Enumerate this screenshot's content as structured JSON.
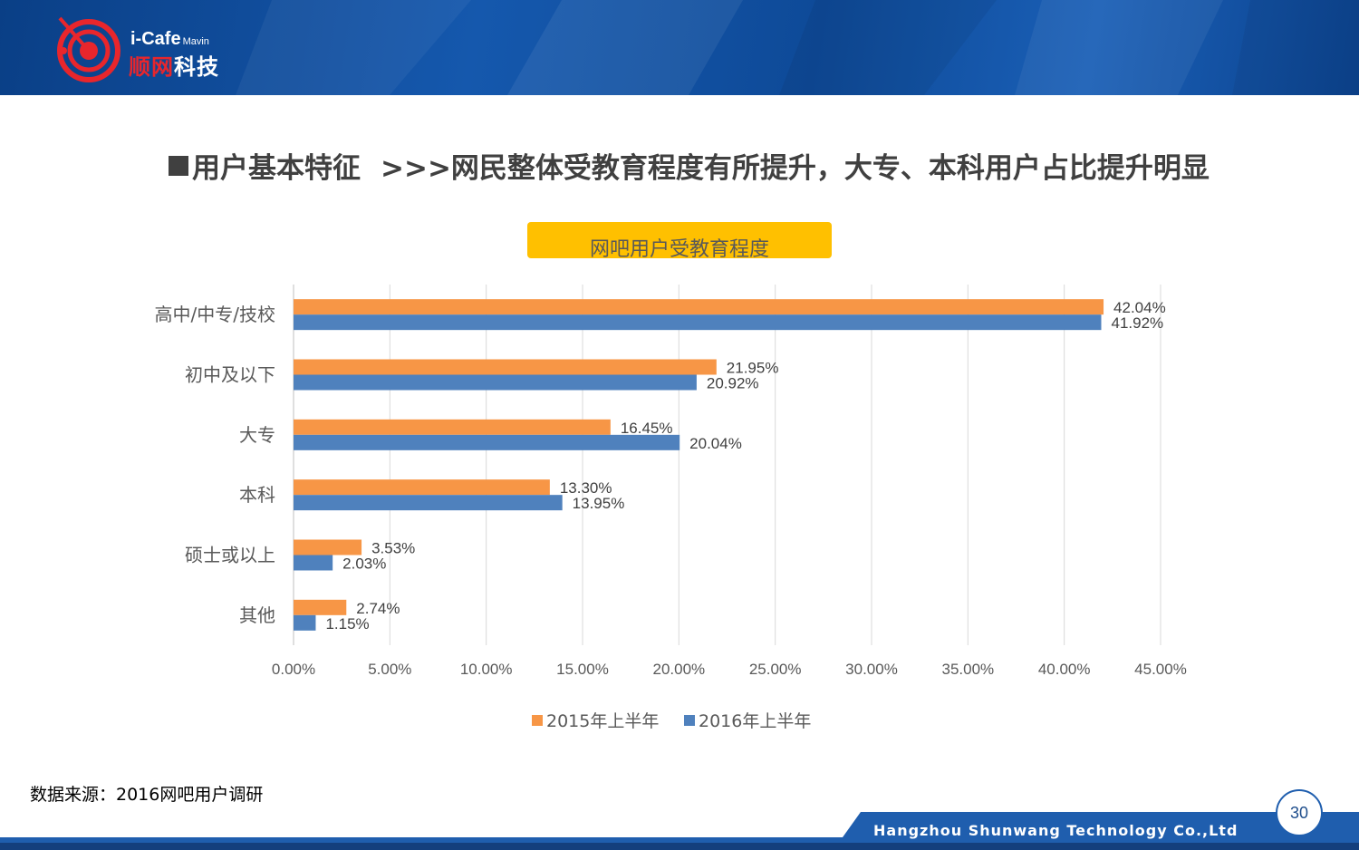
{
  "header": {
    "logo_brand": "i-Cafe",
    "logo_brand_suffix": "Mavin",
    "logo_cn_red": "顺网",
    "logo_cn": "科技"
  },
  "headline": {
    "main": "用户基本特征",
    "sub": ">>>网民整体受教育程度有所提升，大专、本科用户占比提升明显"
  },
  "chart_data": {
    "type": "bar",
    "orientation": "horizontal",
    "title": "网吧用户受教育程度",
    "categories": [
      "高中/中专/技校",
      "初中及以下",
      "大专",
      "本科",
      "硕士或以上",
      "其他"
    ],
    "series": [
      {
        "name": "2015年上半年",
        "color": "#f79646",
        "values": [
          42.04,
          21.95,
          16.45,
          13.3,
          3.53,
          2.74
        ],
        "labels": [
          "42.04%",
          "21.95%",
          "16.45%",
          "13.30%",
          "3.53%",
          "2.74%"
        ]
      },
      {
        "name": "2016年上半年",
        "color": "#4f81bd",
        "values": [
          41.92,
          20.92,
          20.04,
          13.95,
          2.03,
          1.15
        ],
        "labels": [
          "41.92%",
          "20.92%",
          "20.04%",
          "13.95%",
          "2.03%",
          "1.15%"
        ]
      }
    ],
    "xlim": [
      0,
      45
    ],
    "x_ticks": [
      0,
      5,
      10,
      15,
      20,
      25,
      30,
      35,
      40,
      45
    ],
    "x_tick_labels": [
      "0.00%",
      "5.00%",
      "10.00%",
      "15.00%",
      "20.00%",
      "25.00%",
      "30.00%",
      "35.00%",
      "40.00%",
      "45.00%"
    ],
    "grid": true,
    "legend": "bottom"
  },
  "source": "数据来源：2016网吧用户调研",
  "footer": {
    "company": "Hangzhou Shunwang Technology Co.,Ltd",
    "page_number": "30"
  },
  "colors": {
    "banner": "#1558ad",
    "title_box": "#ffc000",
    "footer": "#1f5eae"
  }
}
